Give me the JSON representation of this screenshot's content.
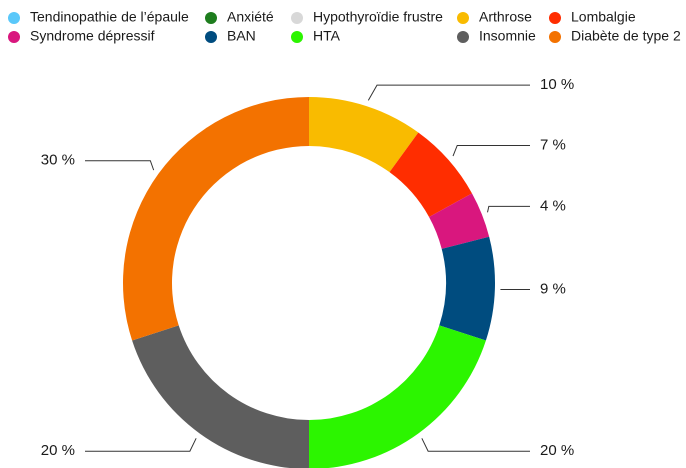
{
  "chart_data": {
    "type": "donut",
    "categories": [
      "Tendinopathie de l’épaule",
      "Anxiété",
      "Hypothyroïdie frustre",
      "Arthrose",
      "Lombalgie",
      "Syndrome dépressif",
      "BAN",
      "HTA",
      "Insomnie",
      "Diabète de type 2"
    ],
    "values": [
      0,
      0,
      0,
      10,
      7,
      4,
      9,
      20,
      20,
      30
    ],
    "value_labels": [
      null,
      null,
      null,
      "10 %",
      "7 %",
      "4 %",
      "9 %",
      "20 %",
      "20 %",
      "30 %"
    ],
    "colors": [
      "#5ac8fa",
      "#1e7d1e",
      "#d8d8d8",
      "#f9bb00",
      "#ff2d00",
      "#d9177e",
      "#004c7f",
      "#2cf500",
      "#5e5e5e",
      "#f37200"
    ],
    "legend": "top"
  }
}
